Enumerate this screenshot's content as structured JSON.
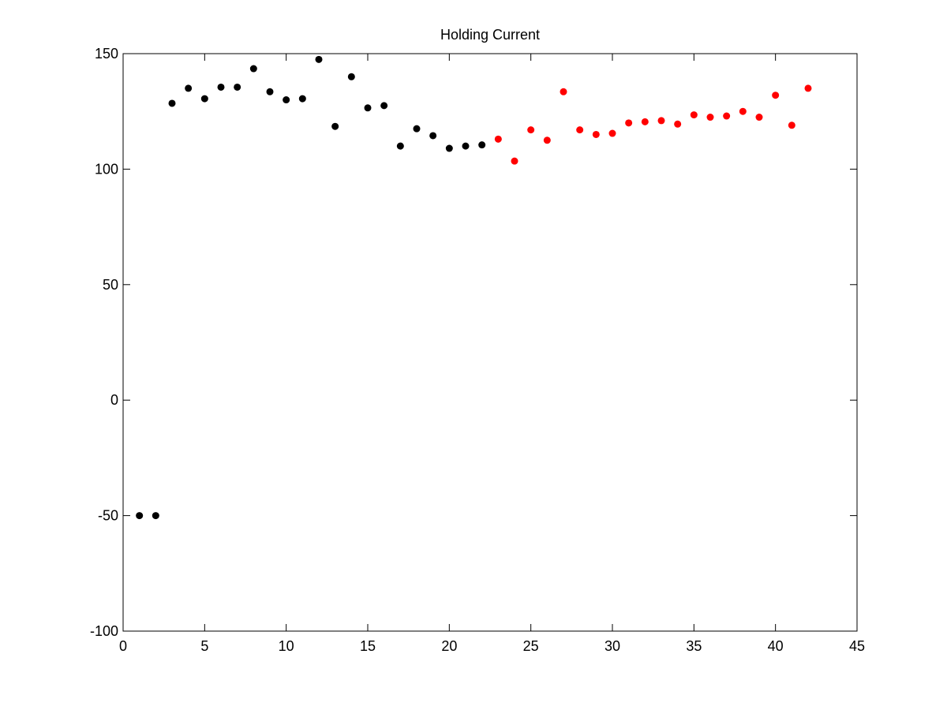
{
  "chart_data": {
    "type": "scatter",
    "title": "Holding Current",
    "xlabel": "",
    "ylabel": "",
    "xlim": [
      0,
      45
    ],
    "ylim": [
      -100,
      150
    ],
    "xticks": [
      0,
      5,
      10,
      15,
      20,
      25,
      30,
      35,
      40,
      45
    ],
    "yticks": [
      -100,
      -50,
      0,
      50,
      100,
      150
    ],
    "grid": false,
    "series": [
      {
        "color": "#000000",
        "x": [
          1,
          2,
          3,
          4,
          5,
          6,
          7,
          8,
          9,
          10,
          11,
          12,
          13,
          14,
          15,
          16,
          17,
          18,
          19,
          20,
          21,
          22
        ],
        "y": [
          -50,
          -50,
          128.5,
          135,
          130.5,
          135.5,
          135.5,
          143.5,
          133.5,
          130,
          130.5,
          147.5,
          118.5,
          140,
          126.5,
          127.5,
          110,
          117.5,
          114.5,
          109,
          110,
          110.5
        ]
      },
      {
        "color": "#ff0000",
        "x": [
          23,
          24,
          25,
          26,
          27,
          28,
          29,
          30,
          31,
          32,
          33,
          34,
          35,
          36,
          37,
          38,
          39,
          40,
          41,
          42
        ],
        "y": [
          113,
          103.5,
          117,
          112.5,
          133.5,
          117,
          115,
          115.5,
          120,
          120.5,
          121,
          119.5,
          123.5,
          122.5,
          123,
          125,
          122.5,
          132,
          119,
          135
        ]
      }
    ]
  }
}
